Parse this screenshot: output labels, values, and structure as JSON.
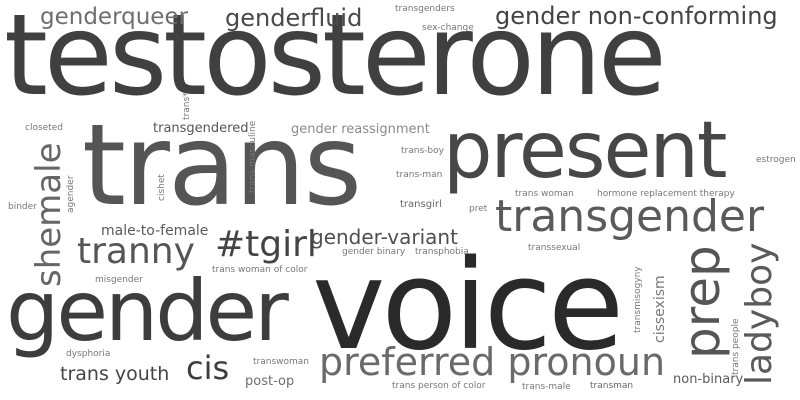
{
  "word_cloud": {
    "words": [
      {
        "text": "testosterone",
        "color": "#404040"
      },
      {
        "text": "voice",
        "color": "#2a2a2a"
      },
      {
        "text": "trans",
        "color": "#555555"
      },
      {
        "text": "present",
        "color": "#474747"
      },
      {
        "text": "gender",
        "color": "#3d3d3d"
      },
      {
        "text": "transgender",
        "color": "#5a5a5a"
      },
      {
        "text": "preferred pronoun",
        "color": "#6a6a6a"
      },
      {
        "text": "prep",
        "color": "#555555"
      },
      {
        "text": "ladyboy",
        "color": "#5a5a5a"
      },
      {
        "text": "shemale",
        "color": "#666666"
      },
      {
        "text": "tranny",
        "color": "#555555"
      },
      {
        "text": "#tgirl",
        "color": "#444444"
      },
      {
        "text": "cis",
        "color": "#3d3d3d"
      },
      {
        "text": "gender non-conforming",
        "color": "#444444"
      },
      {
        "text": "genderfluid",
        "color": "#4a4a4a"
      },
      {
        "text": "genderqueer",
        "color": "#6e6e6e"
      },
      {
        "text": "gender-variant",
        "color": "#505050"
      },
      {
        "text": "trans youth",
        "color": "#444444"
      },
      {
        "text": "male-to-female",
        "color": "#5a5a5a"
      },
      {
        "text": "gender reassignment",
        "color": "#8a8a8a"
      },
      {
        "text": "transgendered",
        "color": "#555555"
      },
      {
        "text": "post-op",
        "color": "#6e6e6e"
      },
      {
        "text": "non-binary",
        "color": "#5a5a5a"
      },
      {
        "text": "cissexism",
        "color": "#777777"
      },
      {
        "text": "transgenders",
        "color": "#777777"
      },
      {
        "text": "sex-change",
        "color": "#777777"
      },
      {
        "text": "trans*",
        "color": "#777777"
      },
      {
        "text": "closeted",
        "color": "#777777"
      },
      {
        "text": "trans-masculine",
        "color": "#777777"
      },
      {
        "text": "trans-boy",
        "color": "#777777"
      },
      {
        "text": "estrogen",
        "color": "#777777"
      },
      {
        "text": "trans-man",
        "color": "#777777"
      },
      {
        "text": "cishet",
        "color": "#777777"
      },
      {
        "text": "agender",
        "color": "#777777"
      },
      {
        "text": "binder",
        "color": "#777777"
      },
      {
        "text": "trans woman",
        "color": "#777777"
      },
      {
        "text": "hormone replacement therapy",
        "color": "#777777"
      },
      {
        "text": "transgirl",
        "color": "#666666"
      },
      {
        "text": "pret",
        "color": "#777777"
      },
      {
        "text": "transsexual",
        "color": "#777777"
      },
      {
        "text": "gender binary",
        "color": "#777777"
      },
      {
        "text": "transphobia",
        "color": "#777777"
      },
      {
        "text": "trans woman of color",
        "color": "#777777"
      },
      {
        "text": "misgender",
        "color": "#777777"
      },
      {
        "text": "transmisogyny",
        "color": "#777777"
      },
      {
        "text": "trans people",
        "color": "#777777"
      },
      {
        "text": "dysphoria",
        "color": "#777777"
      },
      {
        "text": "transwoman",
        "color": "#777777"
      },
      {
        "text": "trans person of color",
        "color": "#777777"
      },
      {
        "text": "trans-male",
        "color": "#777777"
      },
      {
        "text": "transman",
        "color": "#666666"
      }
    ]
  }
}
